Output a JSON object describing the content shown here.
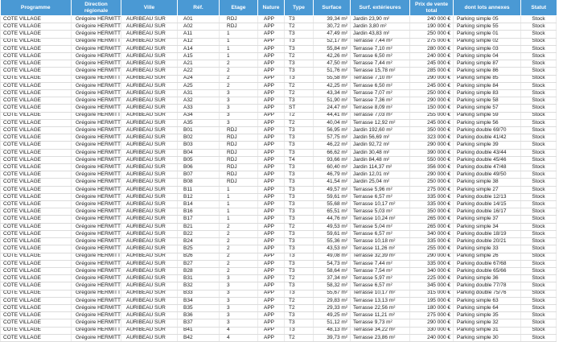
{
  "colors": {
    "header_bg": "#4A99D4",
    "header_text": "#FFFFFF",
    "row_text": "#1A1A1A",
    "gridline": "#DCDCDC"
  },
  "table": {
    "header": {
      "programme": "Programme",
      "direction": "Direction régionale",
      "ville": "Ville",
      "ref": "Réf.",
      "etage": "Etage",
      "nature": "Nature",
      "type": "Type",
      "surface": "Surface",
      "surf_ext": "Surf. extérieures",
      "prix": "Prix de vente total",
      "annexes": "dont lots annexes",
      "statut": "Statut"
    },
    "column_keys": [
      "programme",
      "direction",
      "ville",
      "ref",
      "etage",
      "nature",
      "type",
      "surface",
      "surf_ext",
      "prix",
      "annexes",
      "statut"
    ],
    "rows": [
      [
        "COTE VILLAGE",
        "Grégoire HERMITTE",
        "AURIBEAU SUR",
        "A01",
        "RDJ",
        "APP",
        "T3",
        "39,34 m²",
        "Jardin 23,90 m²",
        "240 000 €",
        "Parking simple 05",
        "Stock"
      ],
      [
        "COTE VILLAGE",
        "Grégoire HERMITTE",
        "AURIBEAU SUR",
        "A02",
        "RDJ",
        "APP",
        "T2",
        "30,72 m²",
        "Jardin 3,80 m²",
        "190 000 €",
        "Parking simple 55",
        "Stock"
      ],
      [
        "COTE VILLAGE",
        "Grégoire HERMITTE",
        "AURIBEAU SUR",
        "A11",
        "1",
        "APP",
        "T3",
        "47,49 m²",
        "Jardin 43,83 m²",
        "250 000 €",
        "Parking simple 01",
        "Stock"
      ],
      [
        "COTE VILLAGE",
        "Grégoire HERMITTE",
        "AURIBEAU SUR",
        "A12",
        "1",
        "APP",
        "T3",
        "52,17 m²",
        "Terrasse 7,44 m²",
        "275 000 €",
        "Parking simple 02",
        "Stock"
      ],
      [
        "COTE VILLAGE",
        "Grégoire HERMITTE",
        "AURIBEAU SUR",
        "A14",
        "1",
        "APP",
        "T3",
        "55,84 m²",
        "Terrasse 7,10 m²",
        "280 000 €",
        "Parking simple 03",
        "Stock"
      ],
      [
        "COTE VILLAGE",
        "Grégoire HERMITTE",
        "AURIBEAU SUR",
        "A15",
        "1",
        "APP",
        "T2",
        "42,26 m²",
        "Terrasse 6,50 m²",
        "240 000 €",
        "Parking simple 04",
        "Stock"
      ],
      [
        "COTE VILLAGE",
        "Grégoire HERMITTE",
        "AURIBEAU SUR",
        "A21",
        "2",
        "APP",
        "T3",
        "47,50 m²",
        "Terrasse 7,44 m²",
        "245 000 €",
        "Parking simple 87",
        "Stock"
      ],
      [
        "COTE VILLAGE",
        "Grégoire HERMITTE",
        "AURIBEAU SUR",
        "A22",
        "2",
        "APP",
        "T3",
        "51,76 m²",
        "Terrasse 15,78 m²",
        "285 000 €",
        "Parking simple 86",
        "Stock"
      ],
      [
        "COTE VILLAGE",
        "Grégoire HERMITTE",
        "AURIBEAU SUR",
        "A24",
        "2",
        "APP",
        "T3",
        "55,58 m²",
        "Terrasse 7,10 m²",
        "290 000 €",
        "Parking simple 85",
        "Stock"
      ],
      [
        "COTE VILLAGE",
        "Grégoire HERMITTE",
        "AURIBEAU SUR",
        "A25",
        "2",
        "APP",
        "T2",
        "42,25 m²",
        "Terrasse 6,50 m²",
        "245 000 €",
        "Parking simple 84",
        "Stock"
      ],
      [
        "COTE VILLAGE",
        "Grégoire HERMITTE",
        "AURIBEAU SUR",
        "A31",
        "3",
        "APP",
        "T2",
        "43,34 m²",
        "Terrasse 7,07 m²",
        "250 000 €",
        "Parking simple 83",
        "Stock"
      ],
      [
        "COTE VILLAGE",
        "Grégoire HERMITTE",
        "AURIBEAU SUR",
        "A32",
        "3",
        "APP",
        "T3",
        "51,90 m²",
        "Terrasse 7,36 m²",
        "290 000 €",
        "Parking simple 58",
        "Stock"
      ],
      [
        "COTE VILLAGE",
        "Grégoire HERMITTE",
        "AURIBEAU SUR",
        "A33",
        "3",
        "APP",
        "ST",
        "24,47 m²",
        "Terrasse 8,09 m²",
        "150 000 €",
        "Parking simple 57",
        "Stock"
      ],
      [
        "COTE VILLAGE",
        "Grégoire HERMITTE",
        "AURIBEAU SUR",
        "A34",
        "3",
        "APP",
        "T2",
        "44,41 m²",
        "Terrasse 7,03 m²",
        "255 000 €",
        "Parking simple 59",
        "Stock"
      ],
      [
        "COTE VILLAGE",
        "Grégoire HERMITTE",
        "AURIBEAU SUR",
        "A35",
        "3",
        "APP",
        "T2",
        "40,04 m²",
        "Terrasse 12,92 m²",
        "245 000 €",
        "Parking simple 56",
        "Stock"
      ],
      [
        "COTE VILLAGE",
        "Grégoire HERMITTE",
        "AURIBEAU SUR",
        "B01",
        "RDJ",
        "APP",
        "T3",
        "56,95 m²",
        "Jardin 192,60 m²",
        "350 000 €",
        "Parking double 69/70",
        "Stock"
      ],
      [
        "COTE VILLAGE",
        "Grégoire HERMITTE",
        "AURIBEAU SUR",
        "B02",
        "RDJ",
        "APP",
        "T3",
        "57,75 m²",
        "Jardin 56,69 m²",
        "323 000 €",
        "Parking double 41/42",
        "Stock"
      ],
      [
        "COTE VILLAGE",
        "Grégoire HERMITTE",
        "AURIBEAU SUR",
        "B03",
        "RDJ",
        "APP",
        "T3",
        "46,22 m²",
        "Jardin 92,72 m²",
        "290 000 €",
        "Parking simple 39",
        "Stock"
      ],
      [
        "COTE VILLAGE",
        "Grégoire HERMITTE",
        "AURIBEAU SUR",
        "B04",
        "RDJ",
        "APP",
        "T3",
        "66,62 m²",
        "Jardin 30,48 m²",
        "390 000 €",
        "Parking double 43/44",
        "Stock"
      ],
      [
        "COTE VILLAGE",
        "Grégoire HERMITTE",
        "AURIBEAU SUR",
        "B05",
        "RDJ",
        "APP",
        "T4",
        "93,66 m²",
        "Jardin 84,48 m²",
        "550 000 €",
        "Parking double 45/46",
        "Stock"
      ],
      [
        "COTE VILLAGE",
        "Grégoire HERMITTE",
        "AURIBEAU SUR",
        "B06",
        "RDJ",
        "APP",
        "T3",
        "60,40 m²",
        "Jardin 114,37 m²",
        "356 000 €",
        "Parking double 47/48",
        "Stock"
      ],
      [
        "COTE VILLAGE",
        "Grégoire HERMITTE",
        "AURIBEAU SUR",
        "B07",
        "RDJ",
        "APP",
        "T3",
        "46,79 m²",
        "Jardin 12,01 m²",
        "290 000 €",
        "Parking double 49/50",
        "Stock"
      ],
      [
        "COTE VILLAGE",
        "Grégoire HERMITTE",
        "AURIBEAU SUR",
        "B08",
        "RDJ",
        "APP",
        "T3",
        "41,54 m²",
        "Jardin 25,04 m²",
        "250 000 €",
        "Parking simple 38",
        "Stock"
      ],
      [
        "COTE VILLAGE",
        "Grégoire HERMITTE",
        "AURIBEAU SUR",
        "B11",
        "1",
        "APP",
        "T3",
        "49,57 m²",
        "Terrasse 5,96 m²",
        "275 000 €",
        "Parking simple 27",
        "Stock"
      ],
      [
        "COTE VILLAGE",
        "Grégoire HERMITTE",
        "AURIBEAU SUR",
        "B12",
        "1",
        "APP",
        "T3",
        "59,61 m²",
        "Terrasse 6,57 m²",
        "335 000 €",
        "Parking double 12/13",
        "Stock"
      ],
      [
        "COTE VILLAGE",
        "Grégoire HERMITTE",
        "AURIBEAU SUR",
        "B14",
        "1",
        "APP",
        "T3",
        "55,68 m²",
        "Terrasse 10,17 m²",
        "335 000 €",
        "Parking double 14/15",
        "Stock"
      ],
      [
        "COTE VILLAGE",
        "Grégoire HERMITTE",
        "AURIBEAU SUR",
        "B16",
        "1",
        "APP",
        "T3",
        "65,51 m²",
        "Terrasse 5,03 m²",
        "350 000 €",
        "Parking double 16/17",
        "Stock"
      ],
      [
        "COTE VILLAGE",
        "Grégoire HERMITTE",
        "AURIBEAU SUR",
        "B17",
        "1",
        "APP",
        "T3",
        "44,76 m²",
        "Terrasse 10,24 m²",
        "265 000 €",
        "Parking simple 37",
        "Stock"
      ],
      [
        "COTE VILLAGE",
        "Grégoire HERMITTE",
        "AURIBEAU SUR",
        "B21",
        "2",
        "APP",
        "T2",
        "49,53 m²",
        "Terrasse 5,04 m²",
        "265 000 €",
        "Parking simple 34",
        "Stock"
      ],
      [
        "COTE VILLAGE",
        "Grégoire HERMITTE",
        "AURIBEAU SUR",
        "B22",
        "2",
        "APP",
        "T3",
        "59,61 m²",
        "Terrasse 6,57 m²",
        "340 000 €",
        "Parking double 18/19",
        "Stock"
      ],
      [
        "COTE VILLAGE",
        "Grégoire HERMITTE",
        "AURIBEAU SUR",
        "B24",
        "2",
        "APP",
        "T3",
        "55,36 m²",
        "Terrasse 10,18 m²",
        "335 000 €",
        "Parking double 20/21",
        "Stock"
      ],
      [
        "COTE VILLAGE",
        "Grégoire HERMITTE",
        "AURIBEAU SUR",
        "B25",
        "2",
        "APP",
        "T3",
        "43,53 m²",
        "Terrasse 11,26 m²",
        "255 000 €",
        "Parking simple 33",
        "Stock"
      ],
      [
        "COTE VILLAGE",
        "Grégoire HERMITTE",
        "AURIBEAU SUR",
        "B26",
        "2",
        "APP",
        "T3",
        "49,08 m²",
        "Terrasse 32,39 m²",
        "290 000 €",
        "Parking simple 26",
        "Stock"
      ],
      [
        "COTE VILLAGE",
        "Grégoire HERMITTE",
        "AURIBEAU SUR",
        "B27",
        "2",
        "APP",
        "T3",
        "54,73 m²",
        "Terrasse 7,44 m²",
        "335 000 €",
        "Parking double 67/68",
        "Stock"
      ],
      [
        "COTE VILLAGE",
        "Grégoire HERMITTE",
        "AURIBEAU SUR",
        "B28",
        "2",
        "APP",
        "T3",
        "58,64 m²",
        "Terrasse 7,54 m²",
        "340 000 €",
        "Parking double 65/66",
        "Stock"
      ],
      [
        "COTE VILLAGE",
        "Grégoire HERMITTE",
        "AURIBEAU SUR",
        "B31",
        "3",
        "APP",
        "T2",
        "37,34 m²",
        "Terrasse 5,97 m²",
        "225 000 €",
        "Parking simple 36",
        "Stock"
      ],
      [
        "COTE VILLAGE",
        "Grégoire HERMITTE",
        "AURIBEAU SUR",
        "B32",
        "3",
        "APP",
        "T3",
        "58,32 m²",
        "Terrasse 6,57 m²",
        "345 000 €",
        "Parking double 77/78",
        "Stock"
      ],
      [
        "COTE VILLAGE",
        "Grégoire HERMITTE",
        "AURIBEAU SUR",
        "B33",
        "3",
        "APP",
        "T3",
        "55,67 m²",
        "Terrasse 10,17 m²",
        "315 000 €",
        "Parking double 75/76",
        "Stock"
      ],
      [
        "COTE VILLAGE",
        "Grégoire HERMITTE",
        "AURIBEAU SUR",
        "B34",
        "3",
        "APP",
        "T2",
        "29,83 m²",
        "Terrasse 13,13 m²",
        "195 000 €",
        "Parking simple 63",
        "Stock"
      ],
      [
        "COTE VILLAGE",
        "Grégoire HERMITTE",
        "AURIBEAU SUR",
        "B35",
        "3",
        "APP",
        "T2",
        "29,33 m²",
        "Terrasse 22,56 m²",
        "180 000 €",
        "Parking simple 64",
        "Stock"
      ],
      [
        "COTE VILLAGE",
        "Grégoire HERMITTE",
        "AURIBEAU SUR",
        "B36",
        "3",
        "APP",
        "T3",
        "49,25 m²",
        "Terrasse 11,21 m²",
        "275 000 €",
        "Parking simple 35",
        "Stock"
      ],
      [
        "COTE VILLAGE",
        "Grégoire HERMITTE",
        "AURIBEAU SUR",
        "B37",
        "3",
        "APP",
        "T3",
        "51,12 m²",
        "Terrasse 9,73 m²",
        "290 000 €",
        "Parking simple 32",
        "Stock"
      ],
      [
        "COTE VILLAGE",
        "Grégoire HERMITTE",
        "AURIBEAU SUR",
        "B41",
        "4",
        "APP",
        "T3",
        "48,13 m²",
        "Terrasse 34,22 m²",
        "330 000 €",
        "Parking simple 31",
        "Stock"
      ],
      [
        "COTE VILLAGE",
        "Grégoire HERMITTE",
        "AURIBEAU SUR",
        "B42",
        "4",
        "APP",
        "T2",
        "39,73 m²",
        "Terrasse 23,86 m²",
        "240 000 €",
        "Parking simple 30",
        "Stock"
      ]
    ]
  }
}
